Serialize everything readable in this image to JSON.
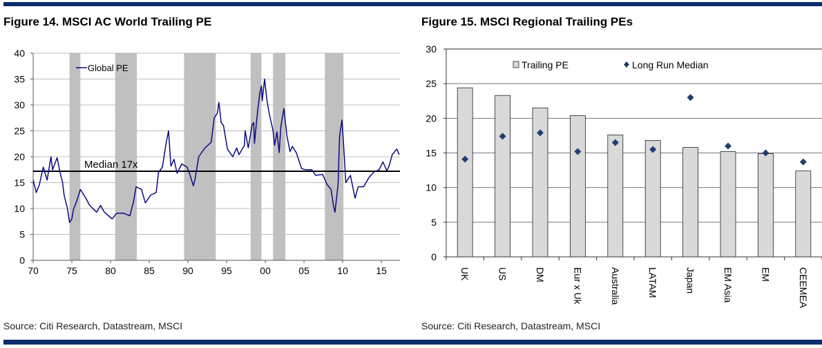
{
  "figures": [
    {
      "title": "Figure 14. MSCI AC World Trailing PE",
      "source": "Source: Citi Research, Datastream, MSCI"
    },
    {
      "title": "Figure 15. MSCI Regional Trailing PEs",
      "source": "Source: Citi Research, Datastream, MSCI"
    }
  ],
  "colors": {
    "rule": "#0b2d6b",
    "line": "#0a0a80",
    "shade": "#c0c0c0",
    "bar": "#d9d9d9",
    "diamond": "#1f3f6e"
  },
  "chart_data": [
    {
      "type": "line",
      "title": "Figure 14. MSCI AC World Trailing PE",
      "xlabel": "",
      "ylabel": "",
      "xlim": [
        1970,
        2017.4
      ],
      "ylim": [
        0,
        40
      ],
      "yticks": [
        "0",
        "5",
        "10",
        "15",
        "20",
        "25",
        "30",
        "35",
        "40"
      ],
      "xticks": [
        {
          "year": 1970,
          "label": "70"
        },
        {
          "year": 1975,
          "label": "75"
        },
        {
          "year": 1980,
          "label": "80"
        },
        {
          "year": 1985,
          "label": "85"
        },
        {
          "year": 1990,
          "label": "90"
        },
        {
          "year": 1995,
          "label": "95"
        },
        {
          "year": 2000,
          "label": "00"
        },
        {
          "year": 2005,
          "label": "05"
        },
        {
          "year": 2010,
          "label": "10"
        },
        {
          "year": 2015,
          "label": "15"
        }
      ],
      "legend": {
        "position": "top-left",
        "entries": [
          "Global PE"
        ]
      },
      "median": {
        "value": 17.2,
        "label": "Median 17x"
      },
      "shaded_periods": [
        [
          1974.7,
          1976.1
        ],
        [
          1980.6,
          1983.4
        ],
        [
          1989.5,
          1993.6
        ],
        [
          1998.1,
          1999.5
        ],
        [
          2001.0,
          2002.6
        ],
        [
          2007.7,
          2010.1
        ]
      ],
      "series": [
        {
          "name": "Global PE",
          "points": [
            [
              1970.0,
              15.5
            ],
            [
              1970.4,
              13.1
            ],
            [
              1970.8,
              14.6
            ],
            [
              1971.3,
              18
            ],
            [
              1971.8,
              15.5
            ],
            [
              1972.3,
              20
            ],
            [
              1972.5,
              17.5
            ],
            [
              1973.1,
              19.8
            ],
            [
              1973.5,
              16.8
            ],
            [
              1973.8,
              15
            ],
            [
              1974.0,
              12.6
            ],
            [
              1974.4,
              10.2
            ],
            [
              1974.7,
              7.3
            ],
            [
              1975.0,
              8
            ],
            [
              1975.2,
              9.8
            ],
            [
              1975.6,
              11.3
            ],
            [
              1976.1,
              13.7
            ],
            [
              1976.8,
              12
            ],
            [
              1977.3,
              10.6
            ],
            [
              1978.2,
              9.3
            ],
            [
              1978.7,
              10.6
            ],
            [
              1979.2,
              9.3
            ],
            [
              1980.2,
              8
            ],
            [
              1980.8,
              9.1
            ],
            [
              1981.7,
              9.1
            ],
            [
              1982.5,
              8.6
            ],
            [
              1983.0,
              11.5
            ],
            [
              1983.3,
              14.2
            ],
            [
              1984.0,
              13.7
            ],
            [
              1984.5,
              11.1
            ],
            [
              1985.2,
              12.6
            ],
            [
              1985.9,
              13.1
            ],
            [
              1986.2,
              17
            ],
            [
              1986.7,
              18
            ],
            [
              1987.2,
              22.8
            ],
            [
              1987.5,
              25
            ],
            [
              1987.8,
              18.2
            ],
            [
              1988.2,
              19.5
            ],
            [
              1988.6,
              16.8
            ],
            [
              1989.2,
              18.6
            ],
            [
              1989.9,
              18
            ],
            [
              1990.2,
              16.8
            ],
            [
              1990.7,
              14.4
            ],
            [
              1990.9,
              15.5
            ],
            [
              1991.4,
              20
            ],
            [
              1992.2,
              21.7
            ],
            [
              1993.0,
              22.8
            ],
            [
              1993.4,
              27.5
            ],
            [
              1993.8,
              28.4
            ],
            [
              1994.0,
              30.5
            ],
            [
              1994.3,
              26.6
            ],
            [
              1994.6,
              26
            ],
            [
              1995.1,
              21.5
            ],
            [
              1995.8,
              20
            ],
            [
              1996.3,
              21.7
            ],
            [
              1996.6,
              20.4
            ],
            [
              1997.3,
              22.2
            ],
            [
              1997.4,
              25
            ],
            [
              1997.8,
              21.7
            ],
            [
              1998.3,
              26.2
            ],
            [
              1998.5,
              26.6
            ],
            [
              1998.6,
              22.6
            ],
            [
              1999.0,
              28.8
            ],
            [
              1999.3,
              32.4
            ],
            [
              1999.5,
              33.7
            ],
            [
              1999.6,
              30.8
            ],
            [
              1999.9,
              35
            ],
            [
              2000.2,
              31
            ],
            [
              2000.5,
              28.4
            ],
            [
              2001.0,
              25
            ],
            [
              2001.2,
              22.2
            ],
            [
              2001.5,
              24.8
            ],
            [
              2001.8,
              20.8
            ],
            [
              2002.0,
              25.7
            ],
            [
              2002.4,
              29.3
            ],
            [
              2002.8,
              24
            ],
            [
              2003.2,
              21
            ],
            [
              2003.5,
              22
            ],
            [
              2004.0,
              20.8
            ],
            [
              2004.7,
              17.7
            ],
            [
              2005.2,
              17.5
            ],
            [
              2006.0,
              17.5
            ],
            [
              2006.5,
              16.4
            ],
            [
              2007.4,
              16.6
            ],
            [
              2008.0,
              14.6
            ],
            [
              2008.5,
              13.7
            ],
            [
              2008.8,
              10.6
            ],
            [
              2009.0,
              9.3
            ],
            [
              2009.4,
              14.6
            ],
            [
              2009.6,
              24
            ],
            [
              2009.9,
              27.1
            ],
            [
              2010.2,
              20.4
            ],
            [
              2010.4,
              15
            ],
            [
              2011.0,
              16.4
            ],
            [
              2011.6,
              12
            ],
            [
              2012.0,
              14.2
            ],
            [
              2012.7,
              14.2
            ],
            [
              2013.4,
              16
            ],
            [
              2014.0,
              17
            ],
            [
              2014.7,
              17.5
            ],
            [
              2015.2,
              19
            ],
            [
              2015.7,
              17.3
            ],
            [
              2016.0,
              18.2
            ],
            [
              2016.4,
              20.4
            ],
            [
              2017.0,
              21.5
            ],
            [
              2017.3,
              20.4
            ]
          ]
        }
      ]
    },
    {
      "type": "bar",
      "title": "Figure 15. MSCI Regional Trailing PEs",
      "xlabel": "",
      "ylabel": "",
      "ylim": [
        0,
        30
      ],
      "yticks": [
        "0",
        "5",
        "10",
        "15",
        "20",
        "25",
        "30"
      ],
      "categories": [
        "UK",
        "US",
        "DM",
        "Eur x Uk",
        "Australia",
        "LATAM",
        "Japan",
        "EM Asia",
        "EM",
        "CEEMEA"
      ],
      "legend": {
        "position": "top",
        "entries": [
          "Trailing PE",
          "Long Run Median"
        ]
      },
      "series": [
        {
          "name": "Trailing PE",
          "kind": "bar",
          "values": [
            24.4,
            23.3,
            21.5,
            20.4,
            17.6,
            16.8,
            15.8,
            15.2,
            14.9,
            12.4
          ]
        },
        {
          "name": "Long Run Median",
          "kind": "marker",
          "values": [
            14.1,
            17.4,
            17.9,
            15.2,
            16.5,
            15.5,
            23.0,
            16.0,
            15.0,
            13.7
          ]
        }
      ]
    }
  ]
}
